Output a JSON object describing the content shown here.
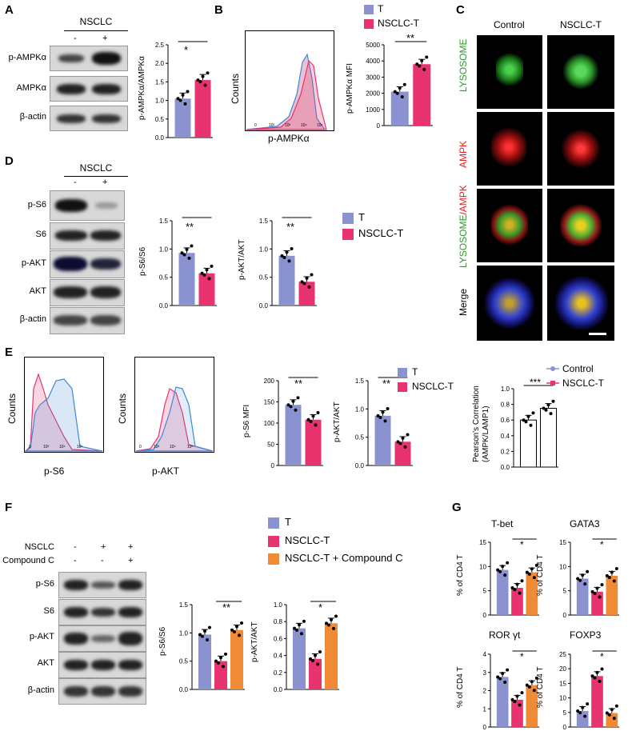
{
  "panels": {
    "A": "A",
    "B": "B",
    "C": "C",
    "D": "D",
    "E": "E",
    "F": "F",
    "G": "G"
  },
  "colors": {
    "T": "#8a93d0",
    "NSCLC_T": "#e8336f",
    "CompoundC": "#f08a34",
    "blue_line": "#3f88d8",
    "pink_line": "#e8336f"
  },
  "A": {
    "title": "NSCLC",
    "lanes": [
      "-",
      "+"
    ],
    "rows": [
      "p-AMPKα",
      "AMPKα",
      "β-actin"
    ],
    "ylabel": "p-AMPKα/AMPKα",
    "sig": "*"
  },
  "B": {
    "legend": [
      "T",
      "NSCLC-T"
    ],
    "hist_ylabel": "Counts",
    "hist_xlabel": "p-AMPKα",
    "ylabel": "p-AMPKα MFI",
    "sig": "**"
  },
  "C": {
    "cols": [
      "Control",
      "NSCLC-T"
    ],
    "rows": [
      "LYSOSOME",
      "AMPK",
      "LYSOSOME/AMPK",
      "Merge"
    ],
    "row3_a": "LYSOSOME",
    "row3_b": "/AMPK"
  },
  "D": {
    "title": "NSCLC",
    "lanes": [
      "-",
      "+"
    ],
    "rows": [
      "p-S6",
      "S6",
      "p-AKT",
      "AKT",
      "β-actin"
    ],
    "ylabel1": "p-S6/S6",
    "ylabel2": "p-AKT/AKT",
    "sig": "**",
    "legend": [
      "T",
      "NSCLC-T"
    ]
  },
  "E": {
    "hist1_xlabel": "p-S6",
    "hist2_xlabel": "p-AKT",
    "hist_ylabel": "Counts",
    "ylabel1": "p-S6 MFI",
    "ylabel2": "p-AKT/AKT",
    "sig": "**",
    "legend": [
      "T",
      "NSCLC-T"
    ],
    "pearson_ylabel": "Pearson's Correlation",
    "pearson_ylabel2": "(AMPK/LAMP1)",
    "pearson_legend": [
      "Control",
      "NSCLC-T"
    ],
    "pearson_sig": "***"
  },
  "F": {
    "rowlabels": [
      "NSCLC",
      "Compound C"
    ],
    "signs": [
      [
        "-",
        "+",
        "+"
      ],
      [
        "-",
        "-",
        "+"
      ]
    ],
    "rows": [
      "p-S6",
      "S6",
      "p-AKT",
      "AKT",
      "β-actin"
    ],
    "ylabel1": "p-S6/S6",
    "ylabel2": "p-AKT/AKT",
    "sig1": "**",
    "sig2": "*",
    "legend": [
      "T",
      "NSCLC-T",
      "NSCLC-T + Compound C"
    ]
  },
  "G": {
    "titles": [
      "T-bet",
      "GATA3",
      "ROR γt",
      "FOXP3"
    ],
    "ylabel": "% of CD4 T",
    "sig": "*"
  },
  "chart_data": [
    {
      "type": "bar",
      "id": "A-bar",
      "categories": [
        "T",
        "NSCLC-T"
      ],
      "values": [
        1.05,
        1.55
      ],
      "ylim": [
        0,
        2.5
      ],
      "yticks": [
        "0.0",
        "0.5",
        "1.0",
        "1.5",
        "2.0",
        "2.5"
      ]
    },
    {
      "type": "bar",
      "id": "B-bar",
      "categories": [
        "T",
        "NSCLC-T"
      ],
      "values": [
        2100,
        3800
      ],
      "ylim": [
        0,
        5000
      ],
      "yticks": [
        "0",
        "1000",
        "2000",
        "3000",
        "4000",
        "5000"
      ]
    },
    {
      "type": "bar",
      "id": "D-bar1",
      "categories": [
        "T",
        "NSCLC-T"
      ],
      "values": [
        0.93,
        0.57
      ],
      "ylim": [
        0,
        1.5
      ],
      "yticks": [
        "0.0",
        "0.5",
        "1.0",
        "1.5"
      ]
    },
    {
      "type": "bar",
      "id": "D-bar2",
      "categories": [
        "T",
        "NSCLC-T"
      ],
      "values": [
        0.88,
        0.42
      ],
      "ylim": [
        0,
        1.5
      ],
      "yticks": [
        "0.0",
        "0.5",
        "1.0",
        "1.5"
      ]
    },
    {
      "type": "bar",
      "id": "E-bar1",
      "categories": [
        "T",
        "NSCLC-T"
      ],
      "values": [
        143,
        108
      ],
      "ylim": [
        0,
        200
      ],
      "yticks": [
        "0",
        "50",
        "100",
        "150",
        "200"
      ]
    },
    {
      "type": "bar",
      "id": "E-bar2",
      "categories": [
        "T",
        "NSCLC-T"
      ],
      "values": [
        0.88,
        0.42
      ],
      "ylim": [
        0,
        1.5
      ],
      "yticks": [
        "0.0",
        "0.5",
        "1.0",
        "1.5"
      ]
    },
    {
      "type": "bar",
      "id": "E-pearson",
      "categories": [
        "Control",
        "NSCLC-T"
      ],
      "values": [
        0.6,
        0.75
      ],
      "ylim": [
        0,
        1.0
      ],
      "yticks": [
        "0.0",
        "0.2",
        "0.4",
        "0.6",
        "0.8",
        "1.0"
      ]
    },
    {
      "type": "bar",
      "id": "F-bar1",
      "categories": [
        "T",
        "NSCLC-T",
        "NSCLC-T + Compound C"
      ],
      "values": [
        0.97,
        0.5,
        1.05
      ],
      "ylim": [
        0,
        1.5
      ],
      "yticks": [
        "0.0",
        "0.5",
        "1.0",
        "1.5"
      ]
    },
    {
      "type": "bar",
      "id": "F-bar2",
      "categories": [
        "T",
        "NSCLC-T",
        "NSCLC-T + Compound C"
      ],
      "values": [
        0.72,
        0.36,
        0.78
      ],
      "ylim": [
        0,
        1.0
      ],
      "yticks": [
        "0.0",
        "0.2",
        "0.4",
        "0.6",
        "0.8",
        "1.0"
      ]
    },
    {
      "type": "bar",
      "id": "G-tbet",
      "categories": [
        "T",
        "NSCLC-T",
        "NSCLC-T + Compound C"
      ],
      "values": [
        9.3,
        5.6,
        8.8
      ],
      "ylim": [
        0,
        15
      ],
      "yticks": [
        "0",
        "5",
        "10",
        "15"
      ]
    },
    {
      "type": "bar",
      "id": "G-gata3",
      "categories": [
        "T",
        "NSCLC-T",
        "NSCLC-T + Compound C"
      ],
      "values": [
        7.5,
        4.8,
        8.1
      ],
      "ylim": [
        0,
        15
      ],
      "yticks": [
        "0",
        "5",
        "10",
        "15"
      ]
    },
    {
      "type": "bar",
      "id": "G-ror",
      "categories": [
        "T",
        "NSCLC-T",
        "NSCLC-T + Compound C"
      ],
      "values": [
        2.75,
        1.5,
        2.3
      ],
      "ylim": [
        0,
        4
      ],
      "yticks": [
        "0",
        "1",
        "2",
        "3",
        "4"
      ]
    },
    {
      "type": "bar",
      "id": "G-foxp3",
      "categories": [
        "T",
        "NSCLC-T",
        "NSCLC-T + Compound C"
      ],
      "values": [
        5.5,
        17.5,
        4.8
      ],
      "ylim": [
        0,
        25
      ],
      "yticks": [
        "0",
        "5",
        "10",
        "15",
        "20",
        "25"
      ]
    }
  ]
}
